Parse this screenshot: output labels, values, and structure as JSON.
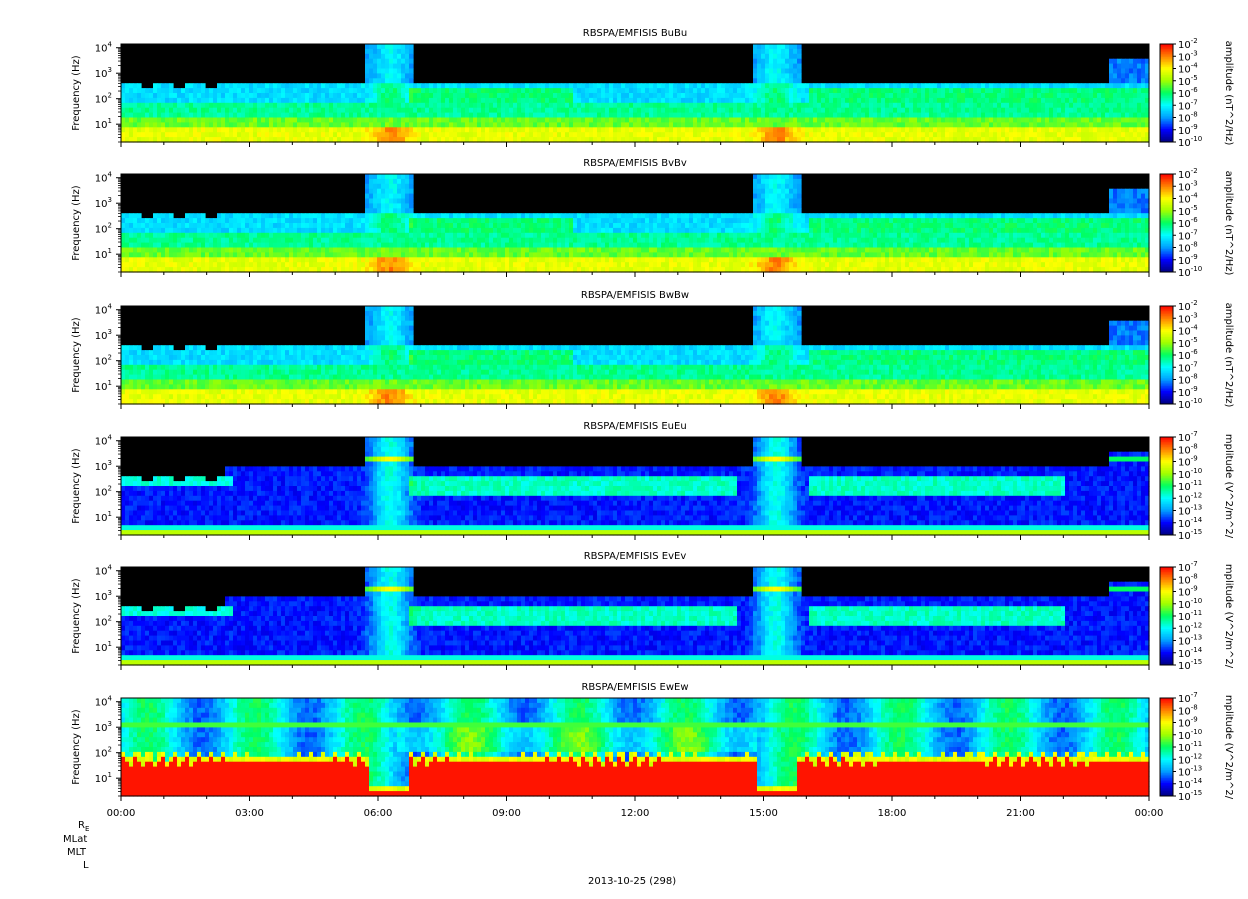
{
  "date_label": "2013-10-25 (298)",
  "footer_labels": [
    "R",
    "E",
    "MLat",
    "MLT",
    "L"
  ],
  "chart_data": {
    "type": "heatmap",
    "x_ticks": [
      "00:00",
      "03:00",
      "06:00",
      "09:00",
      "12:00",
      "15:00",
      "18:00",
      "21:00",
      "00:00"
    ],
    "ylabel": "Frequency (Hz)",
    "y_scale": "log",
    "ylim": [
      2,
      14000
    ],
    "y_ticks": [
      {
        "base": "10",
        "exp": "1",
        "value": 10
      },
      {
        "base": "10",
        "exp": "2",
        "value": 100
      },
      {
        "base": "10",
        "exp": "3",
        "value": 1000
      },
      {
        "base": "10",
        "exp": "4",
        "value": 10000
      }
    ],
    "colormap": [
      "#000080",
      "#0000ff",
      "#00a0ff",
      "#00ffff",
      "#00ff60",
      "#a0ff00",
      "#ffff00",
      "#ff8000",
      "#ff0000"
    ],
    "panels": [
      {
        "title": "RBSPA/EMFISIS  BuBu",
        "kind": "B",
        "cbar_label": "amplitude (nT^2/Hz)",
        "cbar_ticks": [
          {
            "base": "10",
            "exp": "-2"
          },
          {
            "base": "10",
            "exp": "-3"
          },
          {
            "base": "10",
            "exp": "-4"
          },
          {
            "base": "10",
            "exp": "-5"
          },
          {
            "base": "10",
            "exp": "-6"
          },
          {
            "base": "10",
            "exp": "-7"
          },
          {
            "base": "10",
            "exp": "-8"
          },
          {
            "base": "10",
            "exp": "-9"
          },
          {
            "base": "10",
            "exp": "-10"
          }
        ]
      },
      {
        "title": "RBSPA/EMFISIS  BvBv",
        "kind": "B",
        "cbar_label": "amplitude (nT^2/Hz)",
        "cbar_ticks": [
          {
            "base": "10",
            "exp": "-2"
          },
          {
            "base": "10",
            "exp": "-3"
          },
          {
            "base": "10",
            "exp": "-4"
          },
          {
            "base": "10",
            "exp": "-5"
          },
          {
            "base": "10",
            "exp": "-6"
          },
          {
            "base": "10",
            "exp": "-7"
          },
          {
            "base": "10",
            "exp": "-8"
          },
          {
            "base": "10",
            "exp": "-9"
          },
          {
            "base": "10",
            "exp": "-10"
          }
        ]
      },
      {
        "title": "RBSPA/EMFISIS  BwBw",
        "kind": "B",
        "cbar_label": "amplitude (nT^2/Hz)",
        "cbar_ticks": [
          {
            "base": "10",
            "exp": "-2"
          },
          {
            "base": "10",
            "exp": "-3"
          },
          {
            "base": "10",
            "exp": "-4"
          },
          {
            "base": "10",
            "exp": "-5"
          },
          {
            "base": "10",
            "exp": "-6"
          },
          {
            "base": "10",
            "exp": "-7"
          },
          {
            "base": "10",
            "exp": "-8"
          },
          {
            "base": "10",
            "exp": "-9"
          },
          {
            "base": "10",
            "exp": "-10"
          }
        ]
      },
      {
        "title": "RBSPA/EMFISIS  EuEu",
        "kind": "E",
        "cbar_label": "mplitude (V^2/m^2/",
        "cbar_ticks": [
          {
            "base": "10",
            "exp": "-7"
          },
          {
            "base": "10",
            "exp": "-8"
          },
          {
            "base": "10",
            "exp": "-9"
          },
          {
            "base": "10",
            "exp": "-10"
          },
          {
            "base": "10",
            "exp": "-11"
          },
          {
            "base": "10",
            "exp": "-12"
          },
          {
            "base": "10",
            "exp": "-13"
          },
          {
            "base": "10",
            "exp": "-14"
          },
          {
            "base": "10",
            "exp": "-15"
          }
        ]
      },
      {
        "title": "RBSPA/EMFISIS  EvEv",
        "kind": "E",
        "cbar_label": "mplitude (V^2/m^2/",
        "cbar_ticks": [
          {
            "base": "10",
            "exp": "-7"
          },
          {
            "base": "10",
            "exp": "-8"
          },
          {
            "base": "10",
            "exp": "-9"
          },
          {
            "base": "10",
            "exp": "-10"
          },
          {
            "base": "10",
            "exp": "-11"
          },
          {
            "base": "10",
            "exp": "-12"
          },
          {
            "base": "10",
            "exp": "-13"
          },
          {
            "base": "10",
            "exp": "-14"
          },
          {
            "base": "10",
            "exp": "-15"
          }
        ]
      },
      {
        "title": "RBSPA/EMFISIS  EwEw",
        "kind": "Ew",
        "cbar_label": "mplitude (V^2/m^2/",
        "cbar_ticks": [
          {
            "base": "10",
            "exp": "-7"
          },
          {
            "base": "10",
            "exp": "-8"
          },
          {
            "base": "10",
            "exp": "-9"
          },
          {
            "base": "10",
            "exp": "-10"
          },
          {
            "base": "10",
            "exp": "-11"
          },
          {
            "base": "10",
            "exp": "-12"
          },
          {
            "base": "10",
            "exp": "-13"
          },
          {
            "base": "10",
            "exp": "-14"
          },
          {
            "base": "10",
            "exp": "-15"
          }
        ]
      }
    ]
  }
}
